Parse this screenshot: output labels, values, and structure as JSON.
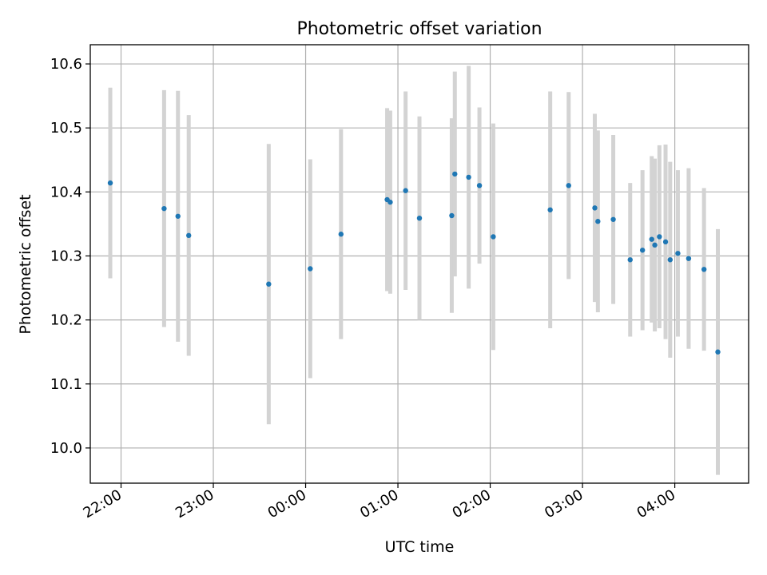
{
  "chart_data": {
    "type": "scatter",
    "title": "Photometric offset variation",
    "xlabel": "UTC time",
    "ylabel": "Photometric offset",
    "xlim": [
      "21:40",
      "04:48"
    ],
    "ylim": [
      9.945,
      10.63
    ],
    "x_ticks": [
      "22:00",
      "23:00",
      "00:00",
      "01:00",
      "02:00",
      "03:00",
      "04:00"
    ],
    "y_ticks": [
      "10.0",
      "10.1",
      "10.2",
      "10.3",
      "10.4",
      "10.5",
      "10.6"
    ],
    "grid": true,
    "colors": {
      "point": "#1f77b4",
      "errorbar": "#d3d3d3",
      "grid": "#b0b0b0"
    },
    "points": [
      {
        "time": "21:53",
        "y": 10.414,
        "err": 0.149
      },
      {
        "time": "22:28",
        "y": 10.374,
        "err": 0.185
      },
      {
        "time": "22:37",
        "y": 10.362,
        "err": 0.196
      },
      {
        "time": "22:44",
        "y": 10.332,
        "err": 0.188
      },
      {
        "time": "23:36",
        "y": 10.256,
        "err": 0.219
      },
      {
        "time": "00:03",
        "y": 10.28,
        "err": 0.171
      },
      {
        "time": "00:23",
        "y": 10.334,
        "err": 0.164
      },
      {
        "time": "00:53",
        "y": 10.388,
        "err": 0.143
      },
      {
        "time": "00:55",
        "y": 10.384,
        "err": 0.143
      },
      {
        "time": "01:05",
        "y": 10.402,
        "err": 0.155
      },
      {
        "time": "01:14",
        "y": 10.359,
        "err": 0.159
      },
      {
        "time": "01:35",
        "y": 10.363,
        "err": 0.152
      },
      {
        "time": "01:37",
        "y": 10.428,
        "err": 0.16
      },
      {
        "time": "01:46",
        "y": 10.423,
        "err": 0.174
      },
      {
        "time": "01:53",
        "y": 10.41,
        "err": 0.122
      },
      {
        "time": "02:02",
        "y": 10.33,
        "err": 0.177
      },
      {
        "time": "02:39",
        "y": 10.372,
        "err": 0.185
      },
      {
        "time": "02:51",
        "y": 10.41,
        "err": 0.146
      },
      {
        "time": "03:08",
        "y": 10.375,
        "err": 0.147
      },
      {
        "time": "03:10",
        "y": 10.354,
        "err": 0.142
      },
      {
        "time": "03:20",
        "y": 10.357,
        "err": 0.132
      },
      {
        "time": "03:31",
        "y": 10.294,
        "err": 0.12
      },
      {
        "time": "03:39",
        "y": 10.309,
        "err": 0.125
      },
      {
        "time": "03:45",
        "y": 10.326,
        "err": 0.13
      },
      {
        "time": "03:47",
        "y": 10.317,
        "err": 0.135
      },
      {
        "time": "03:50",
        "y": 10.33,
        "err": 0.143
      },
      {
        "time": "03:54",
        "y": 10.322,
        "err": 0.152
      },
      {
        "time": "03:57",
        "y": 10.294,
        "err": 0.153
      },
      {
        "time": "04:02",
        "y": 10.304,
        "err": 0.13
      },
      {
        "time": "04:09",
        "y": 10.296,
        "err": 0.141
      },
      {
        "time": "04:19",
        "y": 10.279,
        "err": 0.127
      },
      {
        "time": "04:28",
        "y": 10.15,
        "err": 0.192
      }
    ]
  }
}
